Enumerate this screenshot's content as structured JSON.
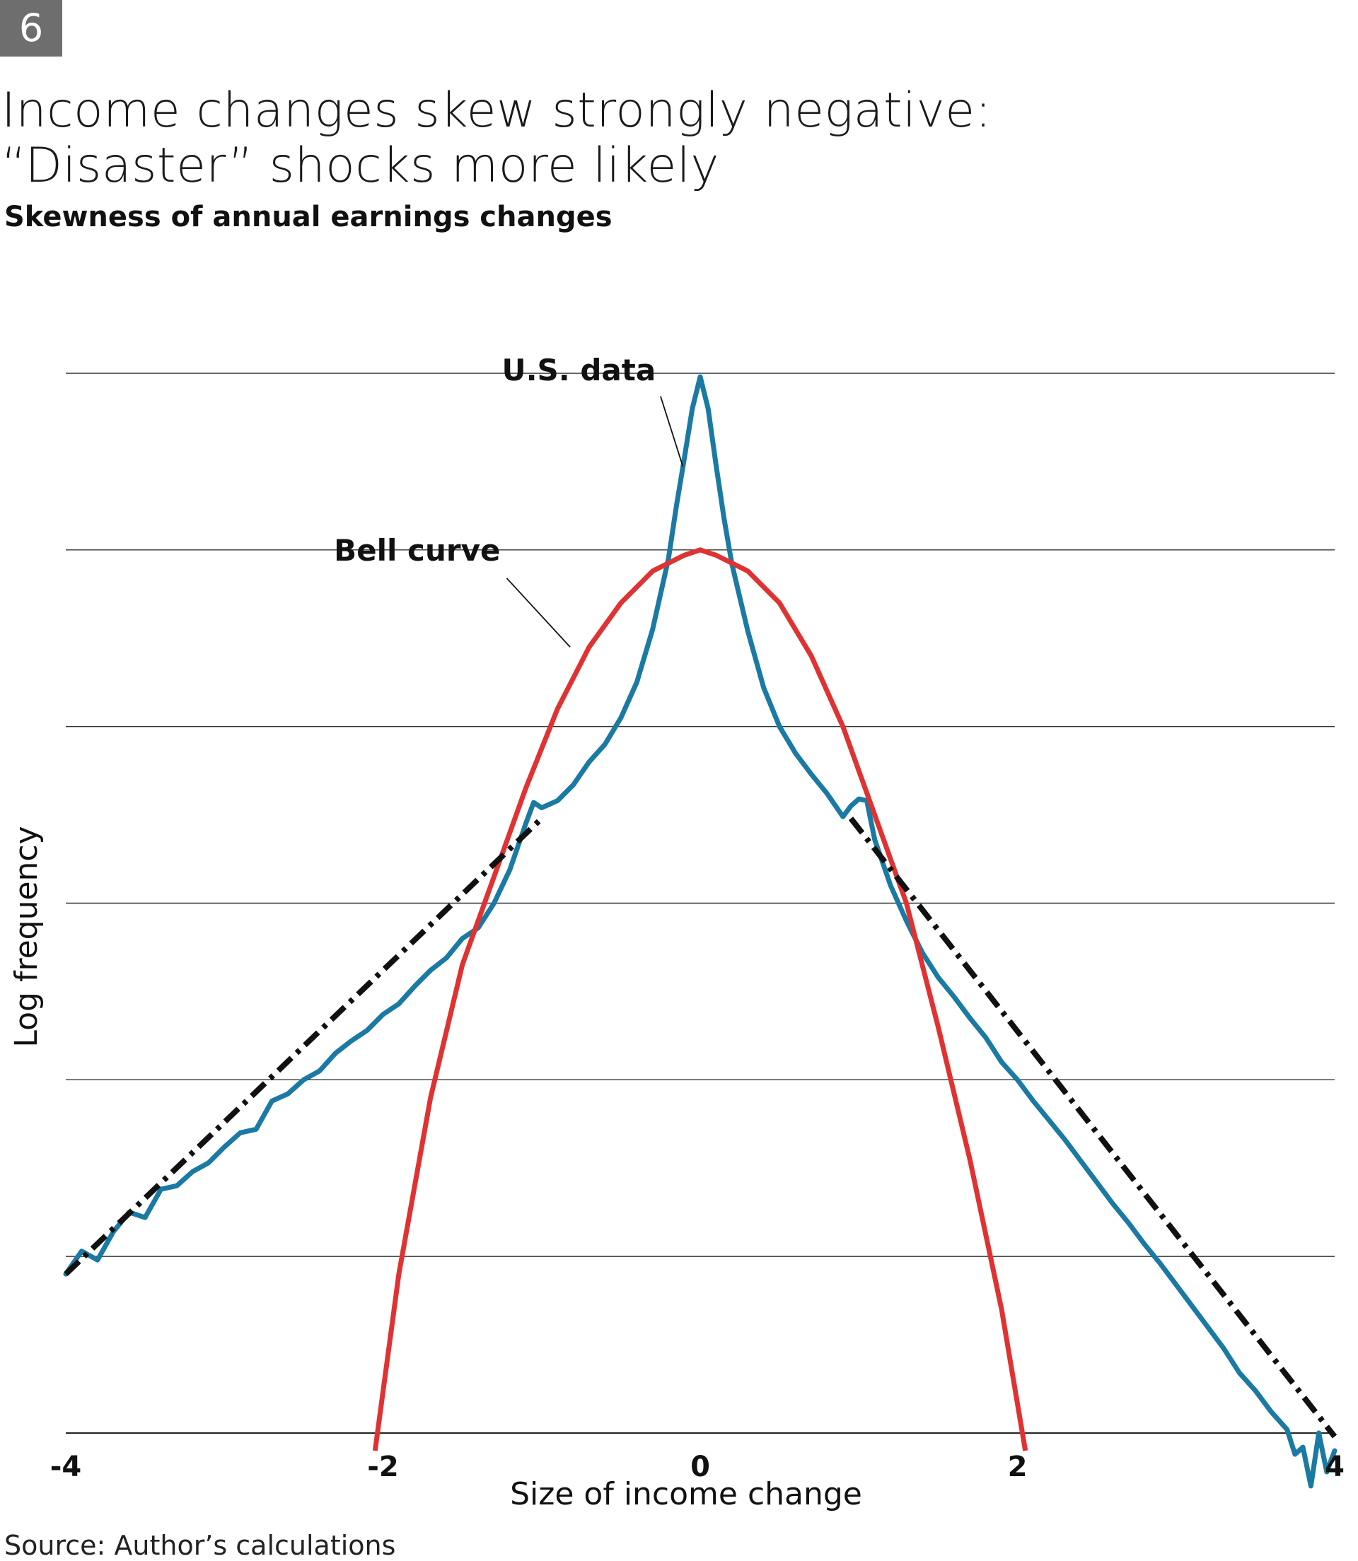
{
  "badge": "6",
  "title_lines": [
    "Income changes skew strongly negative:",
    "“Disaster” shocks more likely"
  ],
  "subtitle": "Skewness of annual earnings changes",
  "source": "Source: Author’s calculations",
  "chart_data": {
    "type": "line",
    "xlabel": "Size of income change",
    "ylabel": "Log frequency",
    "xlim": [
      -4,
      4
    ],
    "ylim": [
      -7,
      -1
    ],
    "x_ticks": [
      "-4",
      "-2",
      "0",
      "2",
      "4"
    ],
    "y_ticks_labeled": false,
    "grid": true,
    "colors": {
      "us_data": "#1a7aa3",
      "bell_curve": "#e03232",
      "fit": "#111111"
    },
    "annotations": [
      {
        "text": "U.S. data",
        "series": "us_data"
      },
      {
        "text": "Bell curve",
        "series": "bell_curve"
      }
    ],
    "series": [
      {
        "name": "U.S. data",
        "key": "us_data",
        "x": [
          -4.0,
          -3.9,
          -3.8,
          -3.7,
          -3.6,
          -3.5,
          -3.4,
          -3.3,
          -3.2,
          -3.1,
          -3.0,
          -2.9,
          -2.8,
          -2.7,
          -2.6,
          -2.5,
          -2.4,
          -2.3,
          -2.2,
          -2.1,
          -2.0,
          -1.9,
          -1.8,
          -1.7,
          -1.6,
          -1.5,
          -1.4,
          -1.3,
          -1.2,
          -1.1,
          -1.05,
          -1.0,
          -0.9,
          -0.8,
          -0.7,
          -0.6,
          -0.5,
          -0.4,
          -0.3,
          -0.2,
          -0.15,
          -0.1,
          -0.05,
          0.0,
          0.05,
          0.1,
          0.15,
          0.2,
          0.3,
          0.4,
          0.5,
          0.6,
          0.7,
          0.8,
          0.9,
          0.95,
          1.0,
          1.05,
          1.1,
          1.2,
          1.3,
          1.4,
          1.5,
          1.6,
          1.7,
          1.8,
          1.9,
          2.0,
          2.1,
          2.2,
          2.3,
          2.4,
          2.5,
          2.6,
          2.7,
          2.8,
          2.9,
          3.0,
          3.1,
          3.2,
          3.3,
          3.4,
          3.5,
          3.6,
          3.7,
          3.75,
          3.8,
          3.85,
          3.9,
          3.95,
          4.0
        ],
        "y": [
          -6.1,
          -5.97,
          -6.02,
          -5.86,
          -5.75,
          -5.78,
          -5.62,
          -5.6,
          -5.52,
          -5.47,
          -5.38,
          -5.3,
          -5.28,
          -5.12,
          -5.08,
          -5.0,
          -4.95,
          -4.85,
          -4.78,
          -4.72,
          -4.63,
          -4.57,
          -4.47,
          -4.38,
          -4.31,
          -4.2,
          -4.14,
          -4.0,
          -3.81,
          -3.55,
          -3.43,
          -3.46,
          -3.42,
          -3.33,
          -3.2,
          -3.1,
          -2.95,
          -2.75,
          -2.45,
          -2.05,
          -1.75,
          -1.48,
          -1.2,
          -1.02,
          -1.2,
          -1.52,
          -1.82,
          -2.08,
          -2.46,
          -2.78,
          -3.0,
          -3.15,
          -3.27,
          -3.38,
          -3.51,
          -3.45,
          -3.41,
          -3.42,
          -3.64,
          -3.9,
          -4.1,
          -4.28,
          -4.42,
          -4.53,
          -4.65,
          -4.76,
          -4.9,
          -5.0,
          -5.12,
          -5.23,
          -5.34,
          -5.46,
          -5.58,
          -5.7,
          -5.81,
          -5.93,
          -6.04,
          -6.16,
          -6.28,
          -6.4,
          -6.52,
          -6.66,
          -6.76,
          -6.88,
          -6.98,
          -7.12,
          -7.08,
          -7.3,
          -7.0,
          -7.22,
          -7.1
        ]
      },
      {
        "name": "Bell curve",
        "key": "bell_curve",
        "x": [
          -2.05,
          -1.9,
          -1.7,
          -1.5,
          -1.3,
          -1.1,
          -0.9,
          -0.7,
          -0.5,
          -0.3,
          -0.1,
          0.0,
          0.1,
          0.3,
          0.5,
          0.7,
          0.9,
          1.1,
          1.3,
          1.5,
          1.7,
          1.9,
          2.05
        ],
        "y": [
          -7.1,
          -6.1,
          -5.1,
          -4.35,
          -3.85,
          -3.35,
          -2.9,
          -2.55,
          -2.3,
          -2.12,
          -2.03,
          -2.0,
          -2.03,
          -2.12,
          -2.3,
          -2.6,
          -3.0,
          -3.5,
          -4.0,
          -4.7,
          -5.45,
          -6.3,
          -7.1
        ]
      },
      {
        "name": "",
        "key": "fit_left",
        "x": [
          -4.0,
          -1.0
        ],
        "y": [
          -6.1,
          -3.52
        ]
      },
      {
        "name": "",
        "key": "fit_right",
        "x": [
          0.95,
          4.0
        ],
        "y": [
          -3.52,
          -7.02
        ]
      }
    ]
  }
}
